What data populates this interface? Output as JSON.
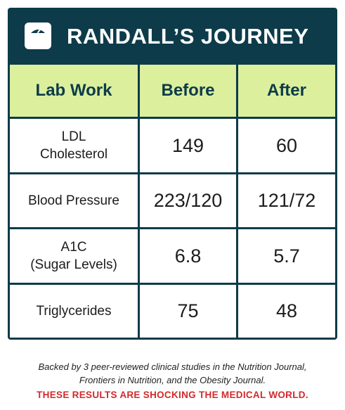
{
  "title": "RANDALL’S JOURNEY",
  "icon": "scale-icon",
  "colors": {
    "header_bg": "#0d3b49",
    "column_header_bg": "#dcef9d",
    "headline_text": "#d32a2a"
  },
  "table": {
    "headers": [
      "Lab Work",
      "Before",
      "After"
    ],
    "rows": [
      {
        "label": "LDL\nCholesterol",
        "before": "149",
        "after": "60"
      },
      {
        "label": "Blood Pressure",
        "before": "223/120",
        "after": "121/72"
      },
      {
        "label": "A1C\n(Sugar Levels)",
        "before": "6.8",
        "after": "5.7"
      },
      {
        "label": "Triglycerides",
        "before": "75",
        "after": "48"
      }
    ]
  },
  "footnote": {
    "line1": "Backed by 3 peer-reviewed clinical studies in the Nutrition Journal,",
    "line2": "Frontiers in Nutrition, and the Obesity Journal."
  },
  "headline": "THESE RESULTS ARE SHOCKING THE MEDICAL WORLD."
}
